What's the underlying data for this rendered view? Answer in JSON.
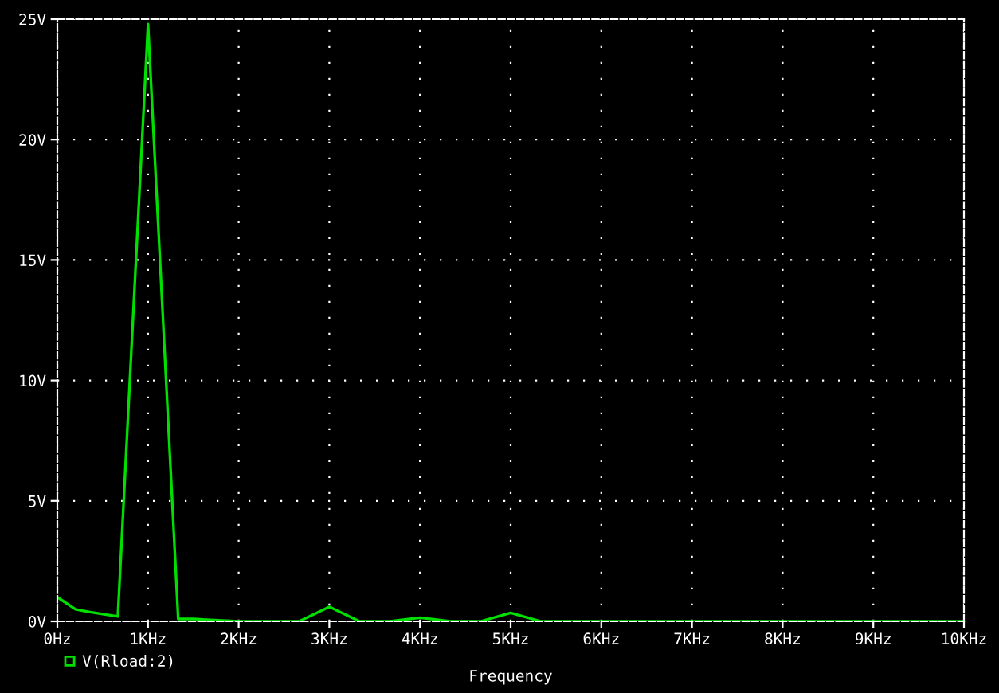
{
  "chart_data": {
    "type": "line",
    "xlabel": "Frequency",
    "series": [
      {
        "name": "V(Rload:2)",
        "color": "#00e000",
        "x": [
          0,
          0.2,
          0.333,
          0.5,
          0.667,
          1,
          1.333,
          1.5,
          2,
          2.667,
          3,
          3.333,
          3.667,
          4,
          4.333,
          4.667,
          5,
          5.333,
          7.5,
          10
        ],
        "values": [
          1.0,
          0.5,
          0.4,
          0.3,
          0.2,
          24.8,
          0.1,
          0.1,
          0.0,
          0.0,
          0.6,
          0.0,
          0.0,
          0.15,
          0.0,
          0.0,
          0.35,
          0.0,
          0.0,
          0.0
        ]
      }
    ],
    "xlim": [
      0,
      10
    ],
    "xticks": [
      {
        "value": 0,
        "label": "0Hz"
      },
      {
        "value": 1,
        "label": "1KHz"
      },
      {
        "value": 2,
        "label": "2KHz"
      },
      {
        "value": 3,
        "label": "3KHz"
      },
      {
        "value": 4,
        "label": "4KHz"
      },
      {
        "value": 5,
        "label": "5KHz"
      },
      {
        "value": 6,
        "label": "6KHz"
      },
      {
        "value": 7,
        "label": "7KHz"
      },
      {
        "value": 8,
        "label": "8KHz"
      },
      {
        "value": 9,
        "label": "9KHz"
      },
      {
        "value": 10,
        "label": "10KHz"
      }
    ],
    "ylim": [
      0,
      25
    ],
    "yticks": [
      {
        "value": 0,
        "label": "0V"
      },
      {
        "value": 5,
        "label": "5V"
      },
      {
        "value": 10,
        "label": "10V"
      },
      {
        "value": 15,
        "label": "15V"
      },
      {
        "value": 20,
        "label": "20V"
      },
      {
        "value": 25,
        "label": "25V"
      }
    ],
    "grid": true,
    "legend": "bottom left",
    "marker": "none",
    "line_style": "solid"
  }
}
